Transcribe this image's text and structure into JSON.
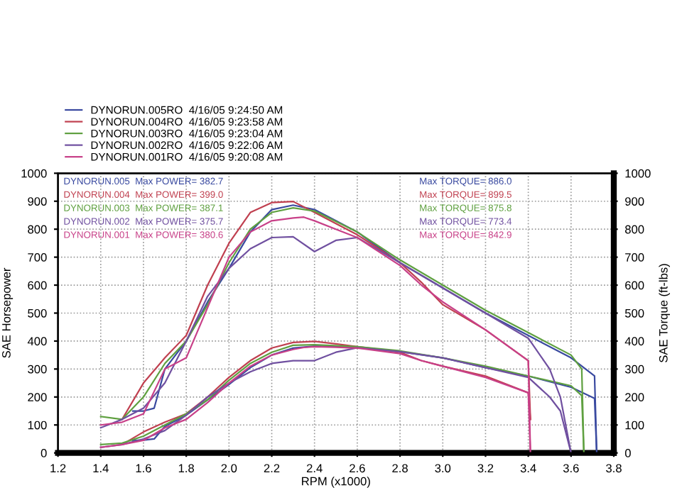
{
  "chart_data": {
    "type": "line",
    "xlabel": "RPM (x1000)",
    "ylabel": "SAE Horsepower",
    "y2label": "SAE Torque (ft-lbs)",
    "xlim": [
      1.2,
      3.8
    ],
    "xticks": [
      1.2,
      1.4,
      1.6,
      1.8,
      {
        "value": 2,
        "label": "2.0"
      },
      2.2,
      2.4,
      2.6,
      2.8,
      {
        "value": 3,
        "label": "3.0"
      },
      3.2,
      3.4,
      3.6,
      3.8
    ],
    "ylim": [
      0,
      1000
    ],
    "yticks": [
      0,
      100,
      200,
      300,
      400,
      500,
      600,
      700,
      800,
      900,
      1000
    ],
    "y2lim": [
      0,
      1000
    ],
    "y2ticks": [
      0,
      100,
      200,
      300,
      400,
      500,
      600,
      700,
      800,
      900,
      1000
    ],
    "grid": true,
    "legend": "top left",
    "marker": "none",
    "line_style": "solid",
    "annotations": [
      "DYNORUN.005  Max POWER= 382.7",
      "Max TORQUE= 886.0",
      "DYNORUN.004  Max POWER= 399.0",
      "Max TORQUE= 899.5",
      "DYNORUN.003  Max POWER= 387.1",
      "Max TORQUE= 875.8",
      "DYNORUN.002  Max POWER= 375.7",
      "Max TORQUE= 773.4",
      "DYNORUN.001  Max POWER= 380.6",
      "Max TORQUE= 842.9"
    ],
    "series": [
      {
        "name": "DYNORUN.005RO  4/16/05 9:24:50 AM",
        "color": "#3a4aa0",
        "x": [
          1.55,
          1.6,
          1.65,
          1.7,
          1.8,
          1.9,
          2.0,
          2.1,
          2.2,
          2.3,
          2.4,
          2.5,
          2.6,
          2.8,
          3.0,
          3.2,
          3.4,
          3.6,
          3.71,
          3.72
        ],
        "values": [
          45,
          46,
          50,
          95,
          135,
          190,
          245,
          305,
          350,
          375,
          382,
          380,
          378,
          362,
          340,
          305,
          275,
          235,
          195,
          0
        ]
      },
      {
        "color": "#3a4aa0",
        "axis": "y2",
        "x": [
          1.55,
          1.6,
          1.65,
          1.7,
          1.8,
          1.9,
          2.0,
          2.1,
          2.2,
          2.3,
          2.4,
          2.5,
          2.6,
          2.8,
          3.0,
          3.2,
          3.4,
          3.6,
          3.71,
          3.72
        ],
        "values": [
          150,
          150,
          160,
          300,
          400,
          540,
          660,
          790,
          870,
          886,
          870,
          830,
          790,
          680,
          590,
          500,
          420,
          340,
          275,
          0
        ]
      },
      {
        "name": "DYNORUN.004RO  4/16/05 9:23:58 AM",
        "color": "#c04050",
        "x": [
          1.5,
          1.6,
          1.7,
          1.8,
          1.9,
          2.0,
          2.1,
          2.2,
          2.3,
          2.4,
          2.5,
          2.6,
          2.8,
          2.9,
          3.0,
          3.2,
          3.4,
          3.41
        ],
        "values": [
          30,
          75,
          110,
          140,
          200,
          270,
          330,
          375,
          395,
          399,
          390,
          380,
          360,
          330,
          310,
          275,
          215,
          120
        ]
      },
      {
        "color": "#c04050",
        "axis": "y2",
        "x": [
          1.5,
          1.6,
          1.7,
          1.8,
          1.9,
          2.0,
          2.1,
          2.2,
          2.3,
          2.4,
          2.5,
          2.6,
          2.8,
          2.9,
          3.0,
          3.2,
          3.4,
          3.41
        ],
        "values": [
          120,
          250,
          340,
          420,
          600,
          750,
          860,
          895,
          899,
          860,
          820,
          780,
          680,
          610,
          530,
          440,
          330,
          120
        ]
      },
      {
        "name": "DYNORUN.003RO  4/16/05 9:23:04 AM",
        "color": "#5fa040",
        "x": [
          1.4,
          1.5,
          1.6,
          1.7,
          1.8,
          1.9,
          2.0,
          2.1,
          2.2,
          2.3,
          2.4,
          2.6,
          2.8,
          3.0,
          3.2,
          3.4,
          3.6,
          3.65,
          3.66
        ],
        "values": [
          30,
          35,
          60,
          100,
          140,
          190,
          260,
          320,
          360,
          385,
          387,
          380,
          365,
          340,
          310,
          275,
          240,
          205,
          0
        ]
      },
      {
        "color": "#5fa040",
        "axis": "y2",
        "x": [
          1.4,
          1.5,
          1.6,
          1.7,
          1.8,
          1.9,
          2.0,
          2.1,
          2.2,
          2.3,
          2.4,
          2.6,
          2.8,
          3.0,
          3.2,
          3.4,
          3.6,
          3.65,
          3.66
        ],
        "values": [
          130,
          120,
          200,
          320,
          400,
          530,
          680,
          800,
          860,
          876,
          865,
          790,
          690,
          600,
          510,
          430,
          350,
          300,
          0
        ]
      },
      {
        "name": "DYNORUN.002RO  4/16/05 9:22:06 AM",
        "color": "#7050a0",
        "x": [
          1.4,
          1.5,
          1.6,
          1.7,
          1.8,
          1.9,
          2.0,
          2.1,
          2.2,
          2.3,
          2.4,
          2.5,
          2.6,
          2.8,
          3.0,
          3.2,
          3.4,
          3.5,
          3.55,
          3.6
        ],
        "values": [
          20,
          30,
          50,
          80,
          135,
          200,
          250,
          290,
          320,
          330,
          330,
          360,
          376,
          362,
          340,
          305,
          270,
          200,
          150,
          0
        ]
      },
      {
        "color": "#7050a0",
        "axis": "y2",
        "x": [
          1.4,
          1.5,
          1.6,
          1.7,
          1.8,
          1.9,
          2.0,
          2.1,
          2.2,
          2.3,
          2.4,
          2.5,
          2.6,
          2.8,
          3.0,
          3.2,
          3.4,
          3.5,
          3.55,
          3.6
        ],
        "values": [
          90,
          120,
          160,
          250,
          400,
          560,
          660,
          730,
          770,
          773,
          720,
          760,
          770,
          680,
          590,
          500,
          410,
          300,
          200,
          0
        ]
      },
      {
        "name": "DYNORUN.001RO  4/16/05 9:20:08 AM",
        "color": "#c84088",
        "x": [
          1.4,
          1.5,
          1.6,
          1.7,
          1.8,
          1.9,
          2.0,
          2.1,
          2.2,
          2.3,
          2.35,
          2.4,
          2.5,
          2.6,
          2.8,
          2.9,
          3.0,
          3.2,
          3.4,
          3.41
        ],
        "values": [
          20,
          30,
          45,
          90,
          120,
          180,
          250,
          310,
          350,
          370,
          377,
          380,
          378,
          375,
          355,
          330,
          310,
          270,
          215,
          0
        ]
      },
      {
        "color": "#c84088",
        "axis": "y2",
        "x": [
          1.4,
          1.5,
          1.6,
          1.7,
          1.8,
          1.9,
          2.0,
          2.1,
          2.2,
          2.3,
          2.35,
          2.4,
          2.5,
          2.6,
          2.8,
          2.9,
          3.0,
          3.2,
          3.4,
          3.41
        ],
        "values": [
          100,
          110,
          140,
          300,
          340,
          520,
          700,
          790,
          830,
          840,
          843,
          830,
          800,
          770,
          670,
          600,
          540,
          440,
          330,
          0
        ]
      }
    ]
  }
}
